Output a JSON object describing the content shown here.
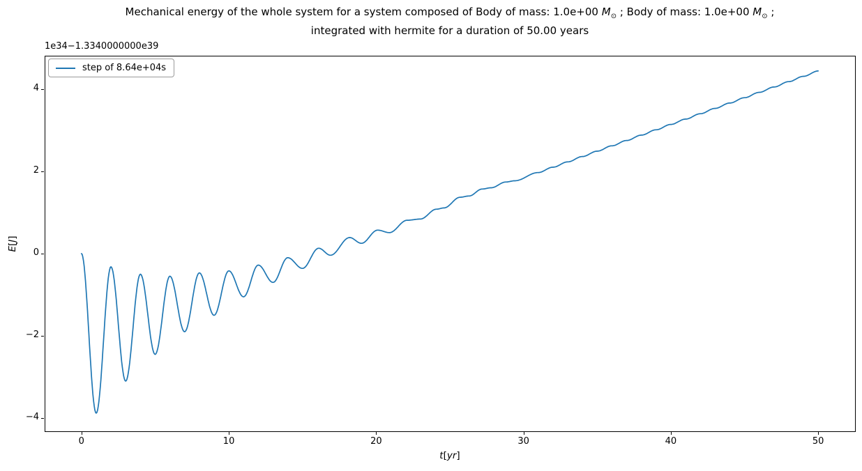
{
  "figure": {
    "title": {
      "seg1": "Mechanical energy of the whole system for a system composed of Body of mass: 1.0e+00 ",
      "msun_m": "M",
      "msun_sub": "⊙",
      "seg2": " ; Body of mass: 1.0e+00 ",
      "seg3": " ;",
      "line2": "integrated with hermite for a duration of 50.00 years"
    },
    "offset_text": "1e34−1.3340000000e39",
    "legend": {
      "label": "step of 8.64e+04s",
      "line_color": "#1f77b4"
    },
    "xlabel": {
      "var": "t",
      "open": "[",
      "unit": "yr",
      "close": "]"
    },
    "ylabel": {
      "var": "E",
      "open": "[",
      "unit": "J",
      "close": "]"
    }
  },
  "chart_data": {
    "type": "line",
    "title": "Mechanical energy of the whole system for a system composed of Body of mass: 1.0e+00 M⊙ ; Body of mass: 1.0e+00 M⊙ ; integrated with hermite for a duration of 50.00 years",
    "xlabel": "t [yr]",
    "ylabel": "E [J]",
    "y_scale_text": "1e34",
    "y_offset_text": "−1.3340000000e39",
    "grid": false,
    "legend_position": "upper left",
    "xlim": [
      -2.5,
      52.5
    ],
    "ylim": [
      -4.32,
      4.81
    ],
    "xticks": [
      0,
      10,
      20,
      30,
      40,
      50
    ],
    "xtick_labels": [
      "0",
      "10",
      "20",
      "30",
      "40",
      "50"
    ],
    "yticks": [
      -4,
      -2,
      0,
      2,
      4
    ],
    "ytick_labels": [
      "−4",
      "−2",
      "0",
      "2",
      "4"
    ],
    "series": [
      {
        "name": "step of 8.64e+04s",
        "color": "#1f77b4",
        "line_width": 1.7,
        "interpolation": "cosine-extrema",
        "points": [
          [
            0,
            0.0
          ],
          [
            1,
            -3.88
          ],
          [
            2,
            -0.32
          ],
          [
            3,
            -3.1
          ],
          [
            4,
            -0.5
          ],
          [
            5,
            -2.45
          ],
          [
            6,
            -0.55
          ],
          [
            7,
            -1.9
          ],
          [
            8,
            -0.47
          ],
          [
            9,
            -1.5
          ],
          [
            10,
            -0.42
          ],
          [
            11,
            -1.05
          ],
          [
            12,
            -0.28
          ],
          [
            13,
            -0.7
          ],
          [
            14,
            -0.1
          ],
          [
            15,
            -0.36
          ],
          [
            16.1,
            0.13
          ],
          [
            16.9,
            -0.04
          ],
          [
            18.2,
            0.39
          ],
          [
            19,
            0.25
          ],
          [
            20.1,
            0.57
          ],
          [
            20.9,
            0.51
          ],
          [
            22.1,
            0.81
          ],
          [
            23,
            0.84
          ],
          [
            24.1,
            1.08
          ],
          [
            24.6,
            1.11
          ],
          [
            25.7,
            1.37
          ],
          [
            26.3,
            1.4
          ],
          [
            27.2,
            1.57
          ],
          [
            27.8,
            1.6
          ],
          [
            28.8,
            1.74
          ],
          [
            29.4,
            1.77
          ],
          [
            31,
            1.97
          ],
          [
            32,
            2.1
          ],
          [
            33,
            2.23
          ],
          [
            34,
            2.36
          ],
          [
            35,
            2.49
          ],
          [
            36,
            2.62
          ],
          [
            37,
            2.75
          ],
          [
            38,
            2.88
          ],
          [
            39,
            3.01
          ],
          [
            40,
            3.14
          ],
          [
            41,
            3.27
          ],
          [
            42,
            3.4
          ],
          [
            43,
            3.53
          ],
          [
            44,
            3.66
          ],
          [
            45,
            3.79
          ],
          [
            46,
            3.92
          ],
          [
            47,
            4.05
          ],
          [
            48,
            4.18
          ],
          [
            49,
            4.31
          ],
          [
            50,
            4.44
          ]
        ]
      }
    ]
  }
}
